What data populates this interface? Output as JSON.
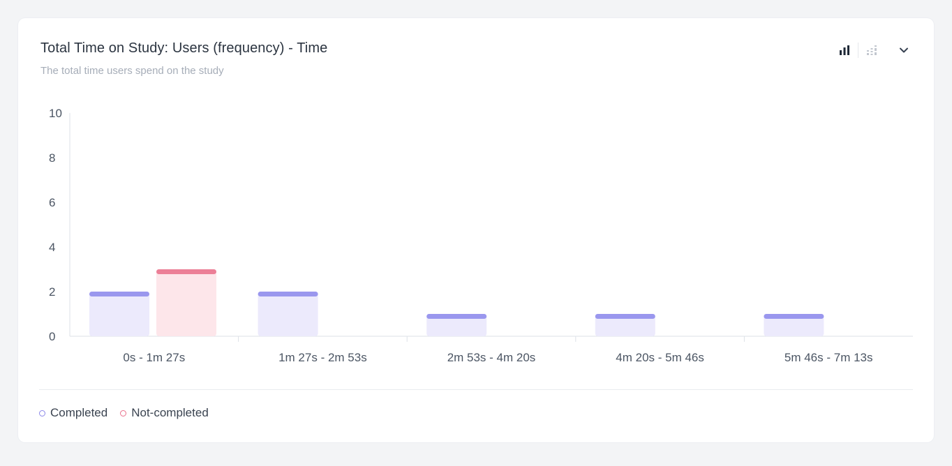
{
  "header": {
    "title": "Total Time on Study: Users (frequency) - Time",
    "subtitle": "The total time users spend on the study"
  },
  "toolbar": {
    "icons": [
      "bar-chart-icon",
      "stacked-bar-icon",
      "chevron-down-icon"
    ]
  },
  "colors": {
    "completed_fill": "#eceafc",
    "completed_cap": "#9a97ee",
    "not_completed_fill": "#fde6ea",
    "not_completed_cap": "#ec7f97",
    "axis": "#dde1e7",
    "icon_active": "#1f2937",
    "icon_inactive": "#c2c7cf"
  },
  "chart_data": {
    "type": "bar",
    "categories": [
      "0s - 1m 27s",
      "1m 27s - 2m 53s",
      "2m 53s - 4m 20s",
      "4m 20s - 5m 46s",
      "5m 46s - 7m 13s"
    ],
    "series": [
      {
        "name": "Completed",
        "values": [
          2,
          2,
          1,
          1,
          1
        ]
      },
      {
        "name": "Not-completed",
        "values": [
          3,
          0,
          0,
          0,
          0
        ]
      }
    ],
    "ylim": [
      0,
      10
    ],
    "yticks": [
      0,
      2,
      4,
      6,
      8,
      10
    ],
    "xlabel": "",
    "ylabel": "",
    "grid": false,
    "legend_position": "bottom-left"
  },
  "legend": [
    {
      "label": "Completed"
    },
    {
      "label": "Not-completed"
    }
  ]
}
